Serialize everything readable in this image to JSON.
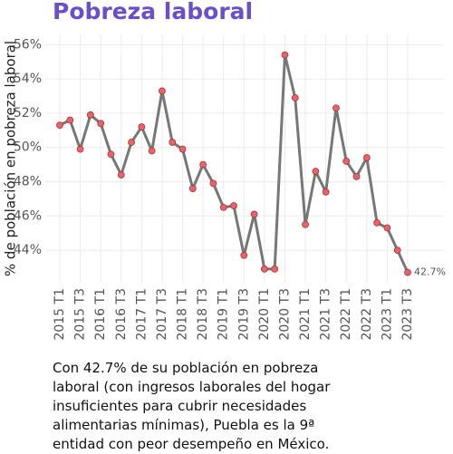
{
  "chart_data": {
    "type": "line",
    "title": "Pobreza laboral",
    "y_label": "% de población en pobreza laboral",
    "caption": "Con 42.7% de su población en pobreza laboral (con ingresos laborales del hogar insuficientes para cubrir necesidades alimentarias mínimas), Puebla es la 9ª entidad con peor desempeño en México.",
    "categories": [
      "2015 T1",
      null,
      "2015 T3",
      null,
      "2016 T1",
      null,
      "2016 T3",
      null,
      "2017 T1",
      null,
      "2017 T3",
      null,
      "2018 T1",
      null,
      "2018 T3",
      null,
      "2019 T1",
      null,
      "2019 T3",
      null,
      "2020 T1",
      null,
      "2020 T3",
      null,
      "2021 T1",
      null,
      "2021 T3",
      null,
      "2022 T1",
      null,
      "2022 T3",
      null,
      "2023 T1",
      null,
      "2023 T3"
    ],
    "values": [
      51.3,
      51.6,
      49.9,
      51.9,
      51.4,
      49.6,
      48.4,
      50.3,
      51.2,
      49.8,
      53.3,
      50.3,
      49.9,
      47.6,
      49.0,
      47.9,
      46.5,
      46.6,
      43.7,
      46.1,
      42.9,
      42.9,
      55.4,
      52.9,
      45.5,
      48.6,
      47.4,
      52.3,
      49.2,
      48.3,
      49.4,
      45.6,
      45.3,
      44.0,
      42.7
    ],
    "value_labels": [
      null,
      null,
      null,
      null,
      null,
      null,
      null,
      null,
      null,
      null,
      null,
      null,
      null,
      null,
      null,
      null,
      null,
      null,
      null,
      null,
      null,
      null,
      null,
      null,
      null,
      null,
      null,
      null,
      null,
      null,
      null,
      null,
      null,
      null,
      "42.7%"
    ],
    "color": "#777777",
    "marker_color": "#e8636a",
    "ylim": [
      42.1,
      56.6
    ],
    "yticks": [
      {
        "value": 44,
        "label": "44%"
      },
      {
        "value": 46,
        "label": "46%"
      },
      {
        "value": 48,
        "label": "48%"
      },
      {
        "value": 50,
        "label": "50%"
      },
      {
        "value": 52,
        "label": "52%"
      },
      {
        "value": 54,
        "label": "54%"
      },
      {
        "value": 56,
        "label": "56%"
      }
    ],
    "grid": true
  }
}
